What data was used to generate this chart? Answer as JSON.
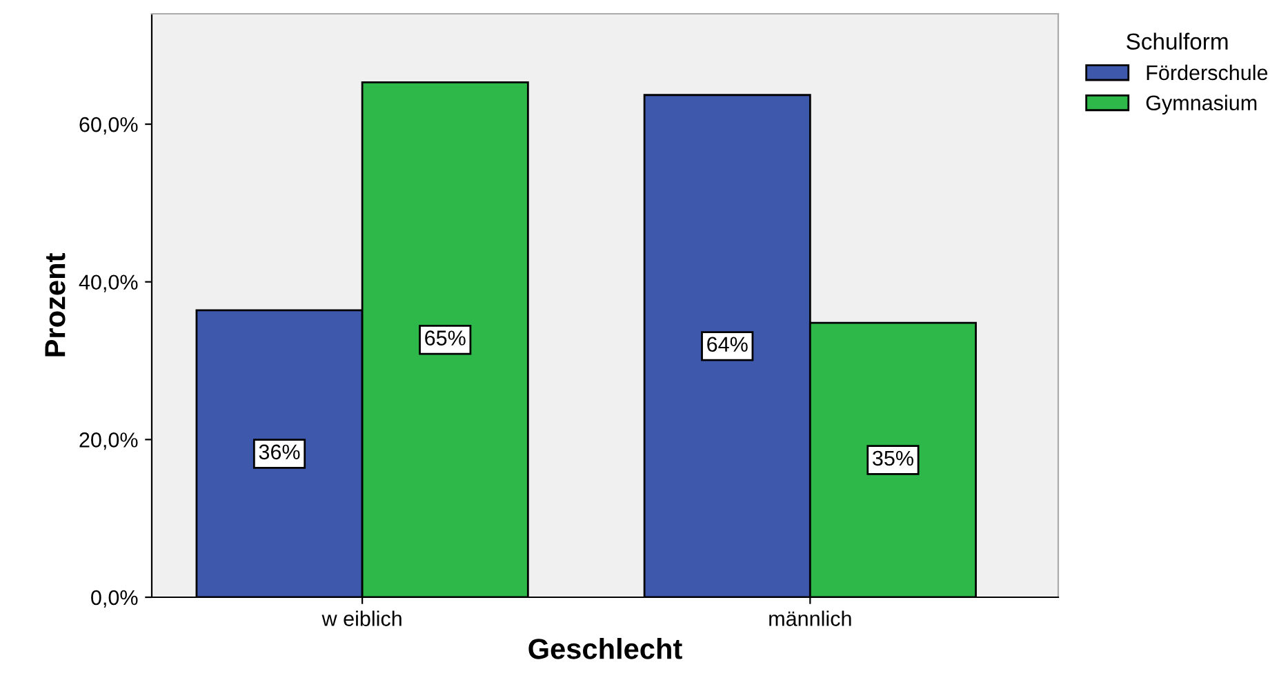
{
  "chart_data": {
    "type": "bar",
    "xlabel": "Geschlecht",
    "ylabel": "Prozent",
    "legend_title": "Schulform",
    "categories": [
      "w eiblich",
      "männlich"
    ],
    "series": [
      {
        "name": "Förderschule",
        "color": "#3e58ac",
        "values": [
          36.4,
          63.7
        ],
        "value_labels": [
          "36%",
          "64%"
        ]
      },
      {
        "name": "Gymnasium",
        "color": "#2fb84a",
        "values": [
          65.3,
          34.8
        ],
        "value_labels": [
          "65%",
          "35%"
        ]
      }
    ],
    "ylim": [
      0,
      74
    ],
    "yticks": [
      {
        "value": 0,
        "label": "0,0%"
      },
      {
        "value": 20,
        "label": "20,0%"
      },
      {
        "value": 40,
        "label": "40,0%"
      },
      {
        "value": 60,
        "label": "60,0%"
      }
    ],
    "grid": false,
    "legend": "top right"
  }
}
